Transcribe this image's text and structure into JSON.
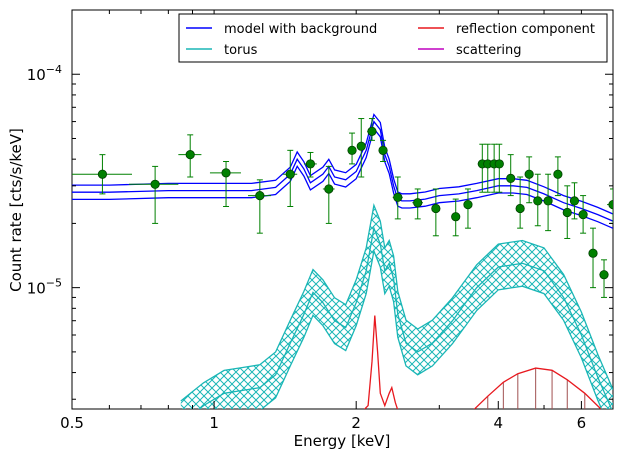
{
  "chart_data": {
    "type": "line",
    "title": "",
    "xlabel": "Energy [keV]",
    "ylabel": "Count rate [cts/s/keV]",
    "x_scale": "log",
    "y_scale": "log",
    "xlim": [
      0.5,
      7.0
    ],
    "ylim": [
      2.7e-06,
      0.0002
    ],
    "grid": false,
    "legend_position": "top-right",
    "x_ticks": [
      {
        "value": 0.5,
        "label": "0.5"
      },
      {
        "value": 1,
        "label": "1"
      },
      {
        "value": 2,
        "label": "2"
      },
      {
        "value": 4,
        "label": "4"
      },
      {
        "value": 6,
        "label": "6"
      }
    ],
    "y_ticks": [
      {
        "value": 1e-05,
        "base": "10",
        "exp": "-5"
      },
      {
        "value": 0.0001,
        "base": "10",
        "exp": "-4"
      }
    ],
    "series": [
      {
        "name": "model with background",
        "color": "#0000ff",
        "band": true,
        "x": [
          0.5,
          0.6,
          0.8,
          1.0,
          1.2,
          1.35,
          1.45,
          1.5,
          1.55,
          1.6,
          1.7,
          1.75,
          1.8,
          1.9,
          2.0,
          2.1,
          2.18,
          2.25,
          2.3,
          2.35,
          2.4,
          2.45,
          2.5,
          2.6,
          2.8,
          3.0,
          3.3,
          3.6,
          4.0,
          4.3,
          4.6,
          5.0,
          5.5,
          6.0,
          6.5,
          7.0
        ],
        "y": [
          2.8e-05,
          2.8e-05,
          2.85e-05,
          2.85e-05,
          2.85e-05,
          2.95e-05,
          3.4e-05,
          4e-05,
          3.6e-05,
          3.1e-05,
          3.4e-05,
          3.7e-05,
          3.3e-05,
          3.2e-05,
          3.5e-05,
          4.4e-05,
          6e-05,
          5.5e-05,
          4.2e-05,
          3.7e-05,
          3e-05,
          2.6e-05,
          2.55e-05,
          2.55e-05,
          2.6e-05,
          2.7e-05,
          2.75e-05,
          2.85e-05,
          3e-05,
          3e-05,
          2.95e-05,
          2.75e-05,
          2.5e-05,
          2.35e-05,
          2.2e-05,
          2.05e-05
        ],
        "band_factor": 1.08
      },
      {
        "name": "torus",
        "color": "#1ab6b6",
        "band": true,
        "x": [
          0.85,
          0.95,
          1.05,
          1.15,
          1.25,
          1.35,
          1.45,
          1.55,
          1.62,
          1.7,
          1.8,
          1.9,
          2.0,
          2.1,
          2.18,
          2.25,
          2.3,
          2.35,
          2.4,
          2.45,
          2.55,
          2.7,
          2.9,
          3.2,
          3.6,
          4.0,
          4.5,
          5.0,
          5.5,
          6.0,
          6.5,
          7.0
        ],
        "y": [
          2.3e-06,
          2.8e-06,
          3.2e-06,
          3.3e-06,
          3.4e-06,
          3.9e-06,
          5.5e-06,
          7.5e-06,
          9.5e-06,
          8.5e-06,
          7e-06,
          6.5e-06,
          8.5e-06,
          1.2e-05,
          1.9e-05,
          1.6e-05,
          1.2e-05,
          1.3e-05,
          1.1e-05,
          7.5e-06,
          5.5e-06,
          5e-06,
          5.5e-06,
          7e-06,
          1e-05,
          1.25e-05,
          1.3e-05,
          1.2e-05,
          9e-06,
          6e-06,
          3.8e-06,
          2.6e-06
        ],
        "band_factor": 1.28
      },
      {
        "name": "reflection component",
        "color": "#e8191f",
        "band": false,
        "x": [
          2.05,
          2.12,
          2.16,
          2.19,
          2.22,
          2.25,
          2.3,
          2.35,
          2.38,
          2.42,
          2.46,
          3.5,
          3.8,
          4.1,
          4.4,
          4.8,
          5.2,
          5.6,
          6.1,
          6.6
        ],
        "y": [
          2.6e-06,
          2.8e-06,
          4.5e-06,
          7.4e-06,
          5e-06,
          3.2e-06,
          2.8e-06,
          3.2e-06,
          3.4e-06,
          2.9e-06,
          2.6e-06,
          2.6e-06,
          3.1e-06,
          3.6e-06,
          3.95e-06,
          4.2e-06,
          4.1e-06,
          3.7e-06,
          3.2e-06,
          2.7e-06
        ]
      },
      {
        "name": "scattering",
        "color": "#bf00bf",
        "band": false,
        "x": [],
        "y": []
      }
    ],
    "data_points": {
      "name": "data",
      "color": "#008000",
      "points": [
        {
          "x": 0.58,
          "y": 3.4e-05,
          "xerr": 0.09,
          "ylo": 2.75e-05,
          "yhi": 4.2e-05
        },
        {
          "x": 0.75,
          "y": 3.05e-05,
          "xerr": 0.09,
          "ylo": 2e-05,
          "yhi": 3.7e-05
        },
        {
          "x": 0.89,
          "y": 4.2e-05,
          "xerr": 0.05,
          "ylo": 3.3e-05,
          "yhi": 5.2e-05
        },
        {
          "x": 1.06,
          "y": 3.45e-05,
          "xerr": 0.08,
          "ylo": 2.4e-05,
          "yhi": 3.9e-05
        },
        {
          "x": 1.25,
          "y": 2.7e-05,
          "xerr": 0.07,
          "ylo": 1.8e-05,
          "yhi": 3.2e-05
        },
        {
          "x": 1.45,
          "y": 3.4e-05,
          "xerr": 0.05,
          "ylo": 2.4e-05,
          "yhi": 4.4e-05
        },
        {
          "x": 1.6,
          "y": 3.8e-05,
          "xerr": 0.05,
          "ylo": 3.3e-05,
          "yhi": 4.3e-05
        },
        {
          "x": 1.75,
          "y": 2.9e-05,
          "xerr": 0.05,
          "ylo": 2e-05,
          "yhi": 3.7e-05
        },
        {
          "x": 1.96,
          "y": 4.4e-05,
          "xerr": 0.04,
          "ylo": 3.8e-05,
          "yhi": 5.3e-05
        },
        {
          "x": 2.05,
          "y": 4.6e-05,
          "xerr": 0.04,
          "ylo": 3.3e-05,
          "yhi": 6.2e-05
        },
        {
          "x": 2.16,
          "y": 5.4e-05,
          "xerr": 0.05,
          "ylo": 4.9e-05,
          "yhi": 6.2e-05
        },
        {
          "x": 2.28,
          "y": 4.4e-05,
          "xerr": 0.04,
          "ylo": 3.9e-05,
          "yhi": 4.9e-05
        },
        {
          "x": 2.45,
          "y": 2.65e-05,
          "xerr": 0.06,
          "ylo": 2.1e-05,
          "yhi": 3.3e-05
        },
        {
          "x": 2.7,
          "y": 2.5e-05,
          "xerr": 0.07,
          "ylo": 2.1e-05,
          "yhi": 2.9e-05
        },
        {
          "x": 2.95,
          "y": 2.35e-05,
          "xerr": 0.06,
          "ylo": 1.75e-05,
          "yhi": 2.9e-05
        },
        {
          "x": 3.25,
          "y": 2.15e-05,
          "xerr": 0.06,
          "ylo": 1.75e-05,
          "yhi": 2.6e-05
        },
        {
          "x": 3.45,
          "y": 2.45e-05,
          "xerr": 0.06,
          "ylo": 1.9e-05,
          "yhi": 2.9e-05
        },
        {
          "x": 3.7,
          "y": 3.8e-05,
          "xerr": 0.08,
          "ylo": 2.8e-05,
          "yhi": 4.7e-05
        },
        {
          "x": 3.8,
          "y": 3.8e-05,
          "xerr": 0.08,
          "ylo": 2.8e-05,
          "yhi": 4.7e-05
        },
        {
          "x": 3.92,
          "y": 3.8e-05,
          "xerr": 0.08,
          "ylo": 2.8e-05,
          "yhi": 4.7e-05
        },
        {
          "x": 4.02,
          "y": 3.8e-05,
          "xerr": 0.08,
          "ylo": 2.8e-05,
          "yhi": 4.7e-05
        },
        {
          "x": 4.25,
          "y": 3.25e-05,
          "xerr": 0.08,
          "ylo": 2.7e-05,
          "yhi": 4.2e-05
        },
        {
          "x": 4.45,
          "y": 2.35e-05,
          "xerr": 0.08,
          "ylo": 1.9e-05,
          "yhi": 3.3e-05
        },
        {
          "x": 4.65,
          "y": 3.4e-05,
          "xerr": 0.08,
          "ylo": 2.5e-05,
          "yhi": 4.1e-05
        },
        {
          "x": 4.85,
          "y": 2.55e-05,
          "xerr": 0.08,
          "ylo": 1.95e-05,
          "yhi": 3.4e-05
        },
        {
          "x": 5.1,
          "y": 2.55e-05,
          "xerr": 0.08,
          "ylo": 1.85e-05,
          "yhi": 3.4e-05
        },
        {
          "x": 5.35,
          "y": 3.4e-05,
          "xerr": 0.1,
          "ylo": 2.7e-05,
          "yhi": 4.1e-05
        },
        {
          "x": 5.6,
          "y": 2.25e-05,
          "xerr": 0.1,
          "ylo": 1.7e-05,
          "yhi": 3e-05
        },
        {
          "x": 5.8,
          "y": 2.55e-05,
          "xerr": 0.1,
          "ylo": 2.1e-05,
          "yhi": 3.1e-05
        },
        {
          "x": 6.05,
          "y": 2.2e-05,
          "xerr": 0.12,
          "ylo": 1.8e-05,
          "yhi": 2.7e-05
        },
        {
          "x": 6.35,
          "y": 1.45e-05,
          "xerr": 0.12,
          "ylo": 1e-05,
          "yhi": 1.9e-05
        },
        {
          "x": 6.7,
          "y": 1.15e-05,
          "xerr": 0.15,
          "ylo": 9e-06,
          "yhi": 1.35e-05
        },
        {
          "x": 7.0,
          "y": 2.45e-05,
          "xerr": 0.2,
          "ylo": 2e-05,
          "yhi": 2.9e-05
        }
      ]
    }
  }
}
